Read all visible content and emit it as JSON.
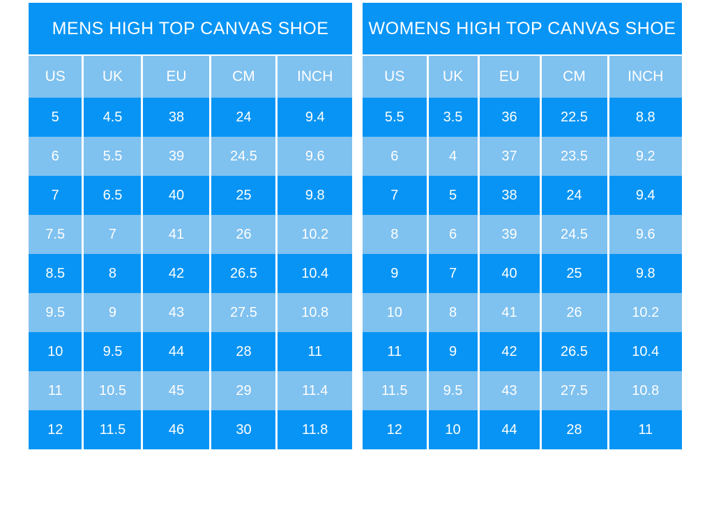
{
  "colors": {
    "bright_blue": "#0894f4",
    "light_blue": "#7fc1ef",
    "divider_white": "#ffffff",
    "text_white": "#ffffff",
    "page_background": "#ffffff"
  },
  "chart_data": [
    {
      "type": "table",
      "title": "MENS HIGH TOP CANVAS SHOE",
      "columns": [
        "US",
        "UK",
        "EU",
        "CM",
        "INCH"
      ],
      "rows": [
        [
          "5",
          "4.5",
          "38",
          "24",
          "9.4"
        ],
        [
          "6",
          "5.5",
          "39",
          "24.5",
          "9.6"
        ],
        [
          "7",
          "6.5",
          "40",
          "25",
          "9.8"
        ],
        [
          "7.5",
          "7",
          "41",
          "26",
          "10.2"
        ],
        [
          "8.5",
          "8",
          "42",
          "26.5",
          "10.4"
        ],
        [
          "9.5",
          "9",
          "43",
          "27.5",
          "10.8"
        ],
        [
          "10",
          "9.5",
          "44",
          "28",
          "11"
        ],
        [
          "11",
          "10.5",
          "45",
          "29",
          "11.4"
        ],
        [
          "12",
          "11.5",
          "46",
          "30",
          "11.8"
        ]
      ]
    },
    {
      "type": "table",
      "title": "WOMENS HIGH TOP CANVAS SHOE",
      "columns": [
        "US",
        "UK",
        "EU",
        "CM",
        "INCH"
      ],
      "rows": [
        [
          "5.5",
          "3.5",
          "36",
          "22.5",
          "8.8"
        ],
        [
          "6",
          "4",
          "37",
          "23.5",
          "9.2"
        ],
        [
          "7",
          "5",
          "38",
          "24",
          "9.4"
        ],
        [
          "8",
          "6",
          "39",
          "24.5",
          "9.6"
        ],
        [
          "9",
          "7",
          "40",
          "25",
          "9.8"
        ],
        [
          "10",
          "8",
          "41",
          "26",
          "10.2"
        ],
        [
          "11",
          "9",
          "42",
          "26.5",
          "10.4"
        ],
        [
          "11.5",
          "9.5",
          "43",
          "27.5",
          "10.8"
        ],
        [
          "12",
          "10",
          "44",
          "28",
          "11"
        ]
      ]
    }
  ]
}
